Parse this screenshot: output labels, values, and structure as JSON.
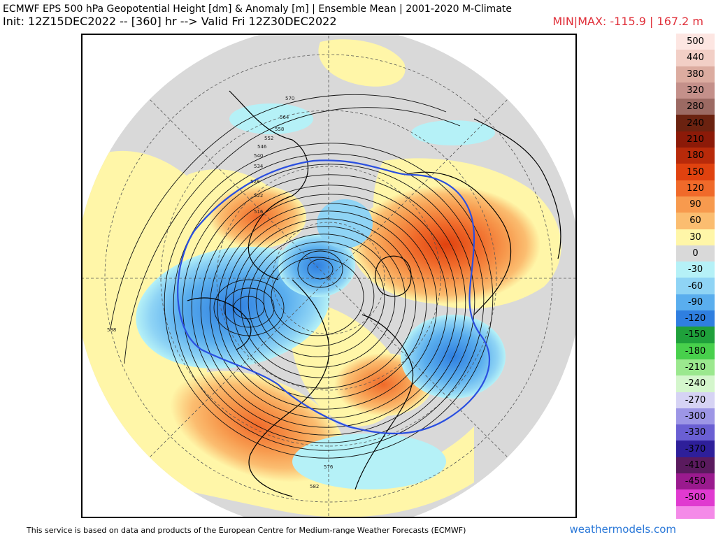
{
  "header": {
    "title_line1": "ECMWF EPS 500 hPa Geopotential Height [dm] & Anomaly [m] | Ensemble Mean | 2001-2020 M-Climate",
    "title_line2": "Init: 12Z15DEC2022 -- [360] hr --> Valid Fri 12Z30DEC2022",
    "minmax": "MIN|MAX: -115.9 | 167.2 m",
    "minmax_color": "#e0303a"
  },
  "colorbar": {
    "levels": [
      {
        "label": "500",
        "color": "#fde6e2"
      },
      {
        "label": "440",
        "color": "#f2cfc6"
      },
      {
        "label": "380",
        "color": "#dcaca0"
      },
      {
        "label": "320",
        "color": "#c4908a"
      },
      {
        "label": "280",
        "color": "#9c6a63"
      },
      {
        "label": "240",
        "color": "#6b2210"
      },
      {
        "label": "210",
        "color": "#8c1a08"
      },
      {
        "label": "180",
        "color": "#b82a0a"
      },
      {
        "label": "150",
        "color": "#e0420f"
      },
      {
        "label": "120",
        "color": "#f06a2a"
      },
      {
        "label": "90",
        "color": "#f79a4e"
      },
      {
        "label": "60",
        "color": "#fbbd70"
      },
      {
        "label": "30",
        "color": "#fff6a8"
      },
      {
        "label": "0",
        "color": "#d9d9d9"
      },
      {
        "label": "-30",
        "color": "#b5f1f7"
      },
      {
        "label": "-60",
        "color": "#8fd4f5"
      },
      {
        "label": "-90",
        "color": "#5aaeee"
      },
      {
        "label": "-120",
        "color": "#2f7fe0"
      },
      {
        "label": "-150",
        "color": "#1fa03b"
      },
      {
        "label": "-180",
        "color": "#48d04c"
      },
      {
        "label": "-210",
        "color": "#9be88e"
      },
      {
        "label": "-240",
        "color": "#d4f6cc"
      },
      {
        "label": "-270",
        "color": "#d6d3f4"
      },
      {
        "label": "-300",
        "color": "#9d96e6"
      },
      {
        "label": "-330",
        "color": "#6a5fd3"
      },
      {
        "label": "-370",
        "color": "#2e1f9a"
      },
      {
        "label": "-410",
        "color": "#5a1a5e"
      },
      {
        "label": "-450",
        "color": "#9a1a8e"
      },
      {
        "label": "-500",
        "color": "#e03ad0"
      }
    ],
    "last_color": "#f48ae8"
  },
  "map": {
    "contour_labels": [
      "588",
      "582",
      "576",
      "570",
      "564",
      "558",
      "552",
      "546",
      "540",
      "534",
      "528",
      "522",
      "516"
    ]
  },
  "footer": {
    "attribution": "This service is based on data and products of the European Centre for Medium-range Weather Forecasts (ECMWF)",
    "site": "weathermodels.com",
    "site_color": "#2a78d8"
  }
}
